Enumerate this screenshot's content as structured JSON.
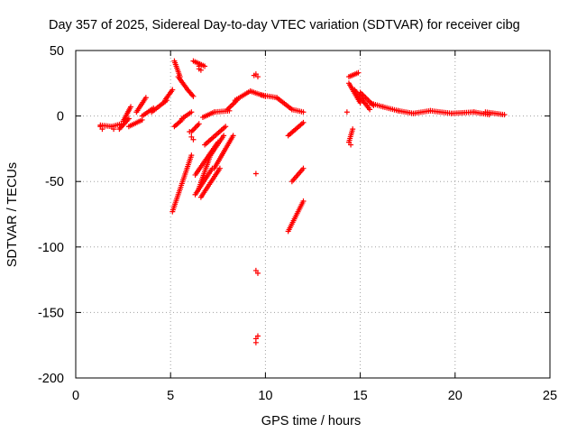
{
  "chart_data": {
    "type": "scatter",
    "title": "Day 357 of 2025, Sidereal Day-to-day VTEC variation (SDTVAR) for receiver cibg",
    "xlabel": "GPS time / hours",
    "ylabel": "SDTVAR / TECUs",
    "xlim": [
      0,
      25
    ],
    "ylim": [
      -200,
      50
    ],
    "xticks": [
      0,
      5,
      10,
      15,
      20,
      25
    ],
    "yticks": [
      -200,
      -150,
      -100,
      -50,
      0,
      50
    ],
    "grid": true,
    "legend": "none",
    "marker": "+",
    "series": [
      {
        "name": "SDTVAR",
        "color": "#ff0000",
        "segments": [
          {
            "x0": 1.3,
            "x1": 1.9,
            "y0": -7,
            "y1": -8
          },
          {
            "x0": 1.9,
            "x1": 2.4,
            "y0": -8,
            "y1": -6
          },
          {
            "x0": 2.3,
            "x1": 2.8,
            "y0": -10,
            "y1": -2
          },
          {
            "x0": 2.5,
            "x1": 2.9,
            "y0": -4,
            "y1": 7
          },
          {
            "x0": 2.8,
            "x1": 3.5,
            "y0": -8,
            "y1": -3
          },
          {
            "x0": 3.2,
            "x1": 3.7,
            "y0": 3,
            "y1": 14
          },
          {
            "x0": 3.5,
            "x1": 4.1,
            "y0": 0,
            "y1": 6
          },
          {
            "x0": 4.0,
            "x1": 4.8,
            "y0": 3,
            "y1": 12
          },
          {
            "x0": 4.7,
            "x1": 5.1,
            "y0": 12,
            "y1": 20
          },
          {
            "x0": 5.2,
            "x1": 5.5,
            "y0": 42,
            "y1": 30
          },
          {
            "x0": 5.4,
            "x1": 5.9,
            "y0": 30,
            "y1": 20
          },
          {
            "x0": 5.9,
            "x1": 6.2,
            "y0": 20,
            "y1": 15
          },
          {
            "x0": 6.2,
            "x1": 6.8,
            "y0": 42,
            "y1": 38
          },
          {
            "x0": 5.2,
            "x1": 5.6,
            "y0": -8,
            "y1": -3
          },
          {
            "x0": 5.6,
            "x1": 6.1,
            "y0": -2,
            "y1": 3
          },
          {
            "x0": 5.1,
            "x1": 6.1,
            "y0": -73,
            "y1": -30
          },
          {
            "x0": 6.1,
            "x1": 6.5,
            "y0": -12,
            "y1": -6
          },
          {
            "x0": 6.3,
            "x1": 7.2,
            "y0": -60,
            "y1": -40
          },
          {
            "x0": 6.5,
            "x1": 7.1,
            "y0": -55,
            "y1": -30
          },
          {
            "x0": 6.3,
            "x1": 7.5,
            "y0": -45,
            "y1": -20
          },
          {
            "x0": 6.6,
            "x1": 7.6,
            "y0": -62,
            "y1": -40
          },
          {
            "x0": 7.1,
            "x1": 7.8,
            "y0": -30,
            "y1": -15
          },
          {
            "x0": 7.3,
            "x1": 8.3,
            "y0": -40,
            "y1": -15
          },
          {
            "x0": 6.8,
            "x1": 7.9,
            "y0": -22,
            "y1": -8
          },
          {
            "x0": 6.7,
            "x1": 7.3,
            "y0": -1,
            "y1": 3
          },
          {
            "x0": 7.3,
            "x1": 8.1,
            "y0": 3,
            "y1": 4
          },
          {
            "x0": 8.0,
            "x1": 8.5,
            "y0": 5,
            "y1": 12
          },
          {
            "x0": 8.4,
            "x1": 9.2,
            "y0": 12,
            "y1": 19
          },
          {
            "x0": 9.2,
            "x1": 10.0,
            "y0": 19,
            "y1": 15
          },
          {
            "x0": 9.8,
            "x1": 10.6,
            "y0": 16,
            "y1": 14
          },
          {
            "x0": 10.6,
            "x1": 11.4,
            "y0": 14,
            "y1": 5
          },
          {
            "x0": 11.4,
            "x1": 12.0,
            "y0": 5,
            "y1": 3
          },
          {
            "x0": 11.2,
            "x1": 12.0,
            "y0": -15,
            "y1": -5
          },
          {
            "x0": 11.2,
            "x1": 12.0,
            "y0": -88,
            "y1": -65
          },
          {
            "x0": 11.4,
            "x1": 12.0,
            "y0": -50,
            "y1": -40
          },
          {
            "x0": 14.4,
            "x1": 14.6,
            "y0": -20,
            "y1": -10
          },
          {
            "x0": 14.4,
            "x1": 14.9,
            "y0": 30,
            "y1": 33
          },
          {
            "x0": 14.4,
            "x1": 15.0,
            "y0": 25,
            "y1": 10
          },
          {
            "x0": 14.7,
            "x1": 15.5,
            "y0": 20,
            "y1": 5
          },
          {
            "x0": 15.0,
            "x1": 15.7,
            "y0": 18,
            "y1": 8
          },
          {
            "x0": 15.5,
            "x1": 16.2,
            "y0": 10,
            "y1": 7
          },
          {
            "x0": 16.2,
            "x1": 17.0,
            "y0": 7,
            "y1": 4
          },
          {
            "x0": 17.0,
            "x1": 17.8,
            "y0": 4,
            "y1": 2
          },
          {
            "x0": 17.8,
            "x1": 18.7,
            "y0": 2,
            "y1": 4
          },
          {
            "x0": 18.7,
            "x1": 19.8,
            "y0": 4,
            "y1": 2
          },
          {
            "x0": 19.8,
            "x1": 21.0,
            "y0": 2,
            "y1": 3
          },
          {
            "x0": 21.0,
            "x1": 21.8,
            "y0": 3,
            "y1": 1
          },
          {
            "x0": 21.6,
            "x1": 22.6,
            "y0": 3,
            "y1": 1
          }
        ],
        "points": [
          {
            "x": 1.3,
            "y": -8
          },
          {
            "x": 1.4,
            "y": -10
          },
          {
            "x": 2.0,
            "y": -10
          },
          {
            "x": 6.0,
            "y": -12
          },
          {
            "x": 6.1,
            "y": -16
          },
          {
            "x": 6.2,
            "y": -18
          },
          {
            "x": 9.5,
            "y": -44
          },
          {
            "x": 9.5,
            "y": -118
          },
          {
            "x": 9.6,
            "y": -120
          },
          {
            "x": 9.5,
            "y": -170
          },
          {
            "x": 9.5,
            "y": -173
          },
          {
            "x": 9.6,
            "y": -168
          },
          {
            "x": 9.4,
            "y": 31
          },
          {
            "x": 9.5,
            "y": 32
          },
          {
            "x": 9.6,
            "y": 30
          },
          {
            "x": 6.5,
            "y": 36
          },
          {
            "x": 6.5,
            "y": 38
          },
          {
            "x": 6.6,
            "y": 35
          },
          {
            "x": 14.3,
            "y": 3
          },
          {
            "x": 14.5,
            "y": -22
          }
        ]
      }
    ]
  }
}
